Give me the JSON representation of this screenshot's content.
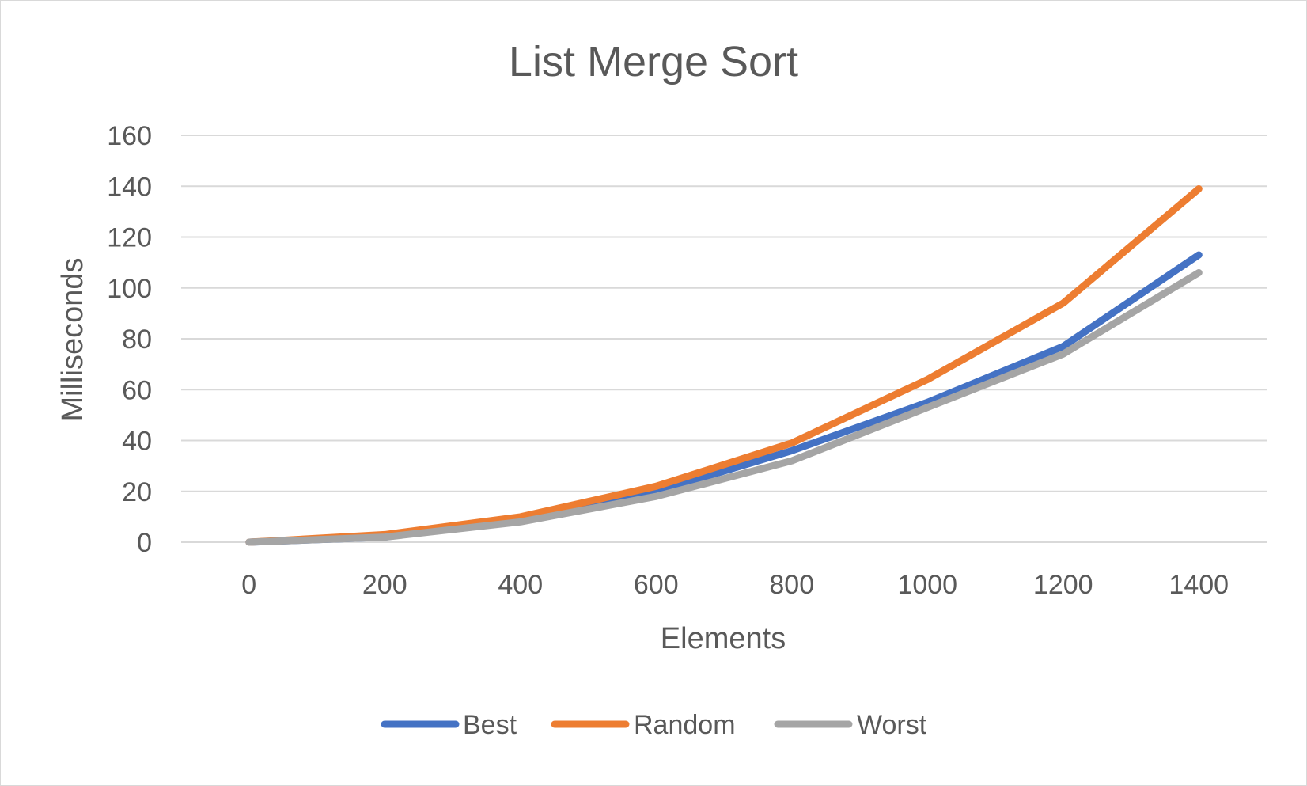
{
  "chart_data": {
    "type": "line",
    "title": "List Merge Sort",
    "xlabel": "Elements",
    "ylabel": "Milliseconds",
    "x": [
      0,
      200,
      400,
      600,
      800,
      1000,
      1200,
      1400
    ],
    "x_tick_labels": [
      "0",
      "200",
      "400",
      "600",
      "800",
      "1000",
      "1200",
      "1400"
    ],
    "y_tick_labels": [
      "0",
      "20",
      "40",
      "60",
      "80",
      "100",
      "120",
      "140",
      "160"
    ],
    "ylim": [
      0,
      160
    ],
    "grid": true,
    "legend_position": "bottom",
    "series": [
      {
        "name": "Best",
        "color": "#4472c4",
        "values": [
          0,
          2,
          9,
          20,
          36,
          55,
          77,
          113
        ]
      },
      {
        "name": "Random",
        "color": "#ed7d31",
        "values": [
          0,
          3,
          10,
          22,
          39,
          64,
          94,
          139
        ]
      },
      {
        "name": "Worst",
        "color": "#a5a5a5",
        "values": [
          0,
          2,
          8,
          18,
          32,
          53,
          74,
          106
        ]
      }
    ]
  }
}
